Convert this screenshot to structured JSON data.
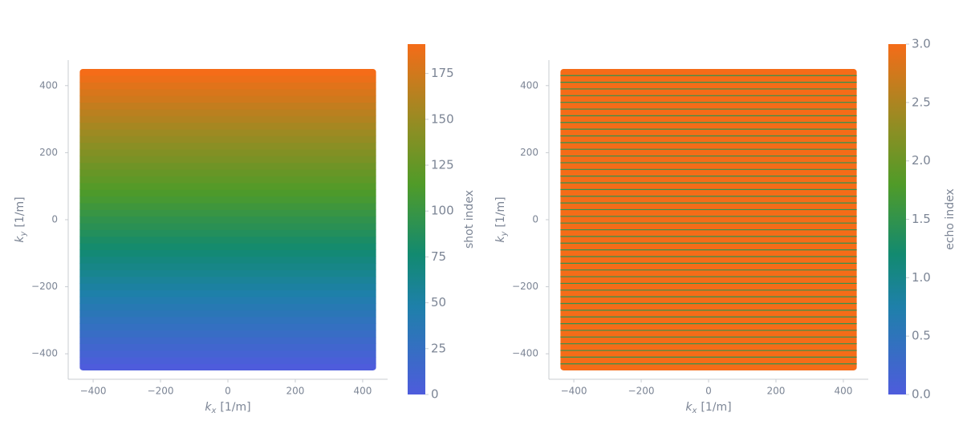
{
  "chart_data": [
    {
      "type": "kspace",
      "xlabel_symbol": "k",
      "xlabel_subscript": "x",
      "xlabel_unit": "[1/m]",
      "ylabel_symbol": "k",
      "ylabel_subscript": "y",
      "ylabel_unit": "[1/m]",
      "xlim": [
        -474,
        474
      ],
      "ylim": [
        -476,
        476
      ],
      "xticks": [
        {
          "value": -400,
          "label": "−400"
        },
        {
          "value": -200,
          "label": "−200"
        },
        0,
        200,
        400
      ],
      "yticks": [
        {
          "value": -400,
          "label": "−400"
        },
        {
          "value": -200,
          "label": "−200"
        },
        0,
        200,
        400
      ],
      "kx_extent": [
        -440,
        440
      ],
      "layers": [
        {
          "ky": [
            -440,
            -420,
            -400,
            -380,
            -360,
            -340,
            -320,
            -300,
            -280,
            -260,
            -240,
            -220,
            -200,
            -180,
            -160,
            -140,
            -120,
            -100,
            -80,
            -60,
            -40,
            -20,
            0,
            20,
            40,
            60,
            80,
            100,
            120,
            140,
            160,
            180,
            200,
            220,
            240,
            260,
            280,
            300,
            320,
            340,
            360,
            380,
            400,
            420,
            440
          ],
          "values": [
            0,
            4,
            9,
            13,
            17,
            22,
            26,
            30,
            35,
            39,
            43,
            48,
            52,
            56,
            61,
            65,
            69,
            74,
            78,
            82,
            87,
            91,
            95,
            100,
            104,
            109,
            113,
            117,
            122,
            126,
            130,
            135,
            139,
            143,
            148,
            152,
            156,
            161,
            165,
            169,
            174,
            178,
            182,
            187,
            191
          ]
        }
      ],
      "colorbar_label": "shot index",
      "clim": [
        0,
        191
      ],
      "cticks": [
        0,
        25,
        50,
        75,
        100,
        125,
        150,
        175
      ]
    },
    {
      "type": "kspace",
      "xlabel_symbol": "k",
      "xlabel_subscript": "x",
      "xlabel_unit": "[1/m]",
      "ylabel_symbol": "k",
      "ylabel_subscript": "y",
      "ylabel_unit": "[1/m]",
      "xlim": [
        -474,
        474
      ],
      "ylim": [
        -476,
        476
      ],
      "xticks": [
        {
          "value": -400,
          "label": "−400"
        },
        {
          "value": -200,
          "label": "−200"
        },
        0,
        200,
        400
      ],
      "yticks": [
        {
          "value": -400,
          "label": "−400"
        },
        {
          "value": -200,
          "label": "−200"
        },
        0,
        200,
        400
      ],
      "kx_extent": [
        -440,
        440
      ],
      "layers": [
        {
          "ky": [
            -440,
            -420,
            -400,
            -380,
            -360,
            -340,
            -320,
            -300,
            -280,
            -260,
            -240,
            -220,
            -200,
            -180,
            -160,
            -140,
            -120,
            -100,
            -80,
            -60,
            -40,
            -20,
            0,
            20,
            40,
            60,
            80,
            100,
            120,
            140,
            160,
            180,
            200,
            220,
            240,
            260,
            280,
            300,
            320,
            340,
            360,
            380,
            400,
            420,
            440
          ],
          "values": [
            3,
            3,
            3,
            3,
            3,
            3,
            3,
            3,
            3,
            3,
            3,
            3,
            3,
            3,
            3,
            3,
            3,
            3,
            3,
            3,
            3,
            3,
            3,
            3,
            3,
            3,
            3,
            3,
            3,
            3,
            3,
            3,
            3,
            3,
            3,
            3,
            3,
            3,
            3,
            3,
            3,
            3,
            3,
            3,
            3
          ]
        },
        {
          "ky": [
            -430,
            -410,
            -390,
            -370,
            -350,
            -330,
            -310,
            -290,
            -270,
            -250,
            -230,
            -210,
            -190,
            -170,
            -150,
            -130,
            -110,
            -90,
            -70,
            -50,
            -30,
            -10,
            10,
            30,
            50,
            70,
            90,
            110,
            130,
            150,
            170,
            190,
            210,
            230,
            250,
            270,
            290,
            310,
            330,
            350,
            370,
            390,
            410,
            430
          ],
          "values": [
            1.5,
            1.5,
            1.5,
            1.5,
            1.5,
            1.5,
            1.5,
            1.5,
            1.5,
            1.5,
            1.5,
            1.5,
            1.5,
            1.5,
            1.5,
            1.5,
            1.5,
            1.5,
            1.5,
            1.5,
            1.5,
            1.5,
            1.5,
            1.5,
            1.5,
            1.5,
            1.5,
            1.5,
            1.5,
            1.5,
            1.5,
            1.5,
            1.5,
            1.5,
            1.5,
            1.5,
            1.5,
            1.5,
            1.5,
            1.5,
            1.5,
            1.5,
            1.5,
            1.5
          ]
        }
      ],
      "colorbar_label": "echo index",
      "clim": [
        0,
        3
      ],
      "cticks": [
        {
          "value": 0,
          "label": "0.0"
        },
        {
          "value": 0.5,
          "label": "0.5"
        },
        {
          "value": 1,
          "label": "1.0"
        },
        {
          "value": 1.5,
          "label": "1.5"
        },
        {
          "value": 2,
          "label": "2.0"
        },
        {
          "value": 2.5,
          "label": "2.5"
        },
        {
          "value": 3,
          "label": "3.0"
        }
      ]
    }
  ]
}
